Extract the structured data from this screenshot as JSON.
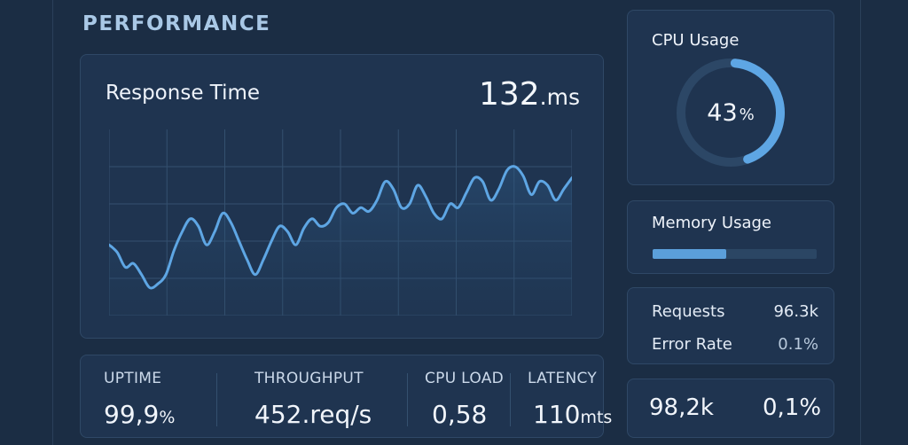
{
  "section_title": "PERFORMANCE",
  "response_time": {
    "title": "Response Time",
    "value": "132",
    "unit": ".ms",
    "line_color": "#5ea6e4"
  },
  "chart_data": {
    "type": "line",
    "title": "Response Time",
    "xlabel": "",
    "ylabel": "",
    "grid": true,
    "ylim": [
      0,
      100
    ],
    "series": [
      {
        "values": [
          38,
          34,
          26,
          28,
          22,
          15,
          17,
          22,
          35,
          45,
          52,
          48,
          38,
          45,
          55,
          50,
          40,
          30,
          22,
          30,
          40,
          48,
          45,
          38,
          47,
          52,
          48,
          50,
          58,
          60,
          55,
          58,
          56,
          62,
          72,
          68,
          58,
          60,
          70,
          64,
          55,
          52,
          60,
          58,
          66,
          74,
          72,
          62,
          68,
          78,
          80,
          75,
          65,
          72,
          70,
          62,
          68,
          74
        ]
      }
    ]
  },
  "stats": {
    "uptime": {
      "label": "UPTIME",
      "value": "99,9",
      "unit": "%"
    },
    "throughput": {
      "label": "THROUGHPUT",
      "value": "452.req/s"
    },
    "cpu_load": {
      "label": "CPU LOAD",
      "value": "0,58"
    },
    "latency": {
      "label": "LATENCY",
      "value": "110",
      "unit": "mts"
    }
  },
  "cpu": {
    "title": "CPU Usage",
    "value": "43",
    "unit": "%",
    "percent": 0.43,
    "ring_color": "#5ea6e4",
    "track_color": "#2c4766"
  },
  "memory": {
    "title": "Memory Usage",
    "fraction": 0.45
  },
  "requests": {
    "requests_label": "Requests",
    "requests_value": "96.3k",
    "error_label": "Error Rate",
    "error_value": "0.1%"
  },
  "summary": {
    "value_left": "98,2k",
    "value_right": "0,1%"
  }
}
